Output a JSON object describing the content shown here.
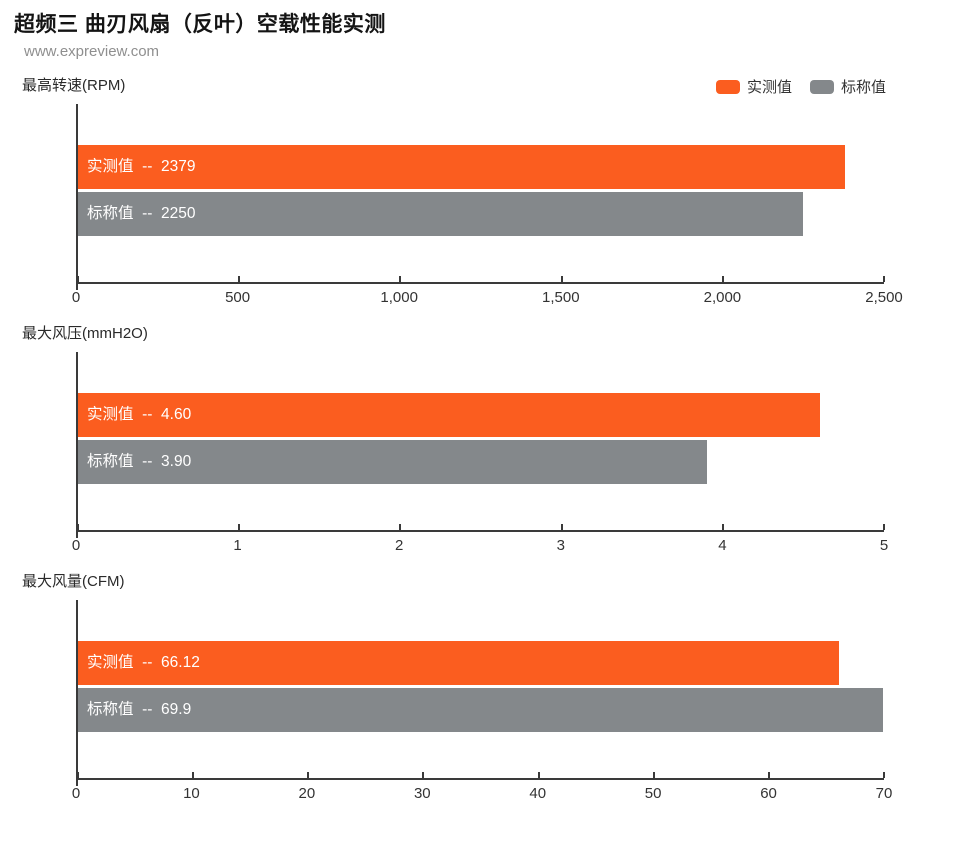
{
  "page": {
    "title": "超频三 曲刃风扇（反叶）空载性能实测",
    "watermark": "www.expreview.com"
  },
  "legend": {
    "items": [
      {
        "label": "实测值",
        "color": "#fb5d1f"
      },
      {
        "label": "标称值",
        "color": "#84888b"
      }
    ]
  },
  "colors": {
    "measured": "#fb5d1f",
    "rated": "#84888b",
    "axis": "#3a3a3a",
    "bar_text": "#ffffff"
  },
  "chart_data": [
    {
      "type": "bar",
      "orientation": "horizontal",
      "title": "最高转速(RPM)",
      "xlim": [
        0,
        2500
      ],
      "grid": false,
      "legend_position": "top-right",
      "series": [
        {
          "key": "measured",
          "name": "实测值",
          "value": 2379,
          "label_text": "实测值  --  2379",
          "color": "#fb5d1f"
        },
        {
          "key": "rated",
          "name": "标称值",
          "value": 2250,
          "label_text": "标称值  --  2250",
          "color": "#84888b"
        }
      ],
      "ticks": [
        {
          "value": 0,
          "label": "0"
        },
        {
          "value": 500,
          "label": "500"
        },
        {
          "value": 1000,
          "label": "1,000"
        },
        {
          "value": 1500,
          "label": "1,500"
        },
        {
          "value": 2000,
          "label": "2,000"
        },
        {
          "value": 2500,
          "label": "2,500"
        }
      ]
    },
    {
      "type": "bar",
      "orientation": "horizontal",
      "title": "最大风压(mmH2O)",
      "xlim": [
        0,
        5
      ],
      "grid": false,
      "series": [
        {
          "key": "measured",
          "name": "实测值",
          "value": 4.6,
          "label_text": "实测值  --  4.60",
          "color": "#fb5d1f"
        },
        {
          "key": "rated",
          "name": "标称值",
          "value": 3.9,
          "label_text": "标称值  --  3.90",
          "color": "#84888b"
        }
      ],
      "ticks": [
        {
          "value": 0,
          "label": "0"
        },
        {
          "value": 1,
          "label": "1"
        },
        {
          "value": 2,
          "label": "2"
        },
        {
          "value": 3,
          "label": "3"
        },
        {
          "value": 4,
          "label": "4"
        },
        {
          "value": 5,
          "label": "5"
        }
      ]
    },
    {
      "type": "bar",
      "orientation": "horizontal",
      "title": "最大风量(CFM)",
      "xlim": [
        0,
        70
      ],
      "grid": false,
      "series": [
        {
          "key": "measured",
          "name": "实测值",
          "value": 66.12,
          "label_text": "实测值  --  66.12",
          "color": "#fb5d1f"
        },
        {
          "key": "rated",
          "name": "标称值",
          "value": 69.9,
          "label_text": "标称值  --  69.9",
          "color": "#84888b"
        }
      ],
      "ticks": [
        {
          "value": 0,
          "label": "0"
        },
        {
          "value": 10,
          "label": "10"
        },
        {
          "value": 20,
          "label": "20"
        },
        {
          "value": 30,
          "label": "30"
        },
        {
          "value": 40,
          "label": "40"
        },
        {
          "value": 50,
          "label": "50"
        },
        {
          "value": 60,
          "label": "60"
        },
        {
          "value": 70,
          "label": "70"
        }
      ]
    }
  ]
}
